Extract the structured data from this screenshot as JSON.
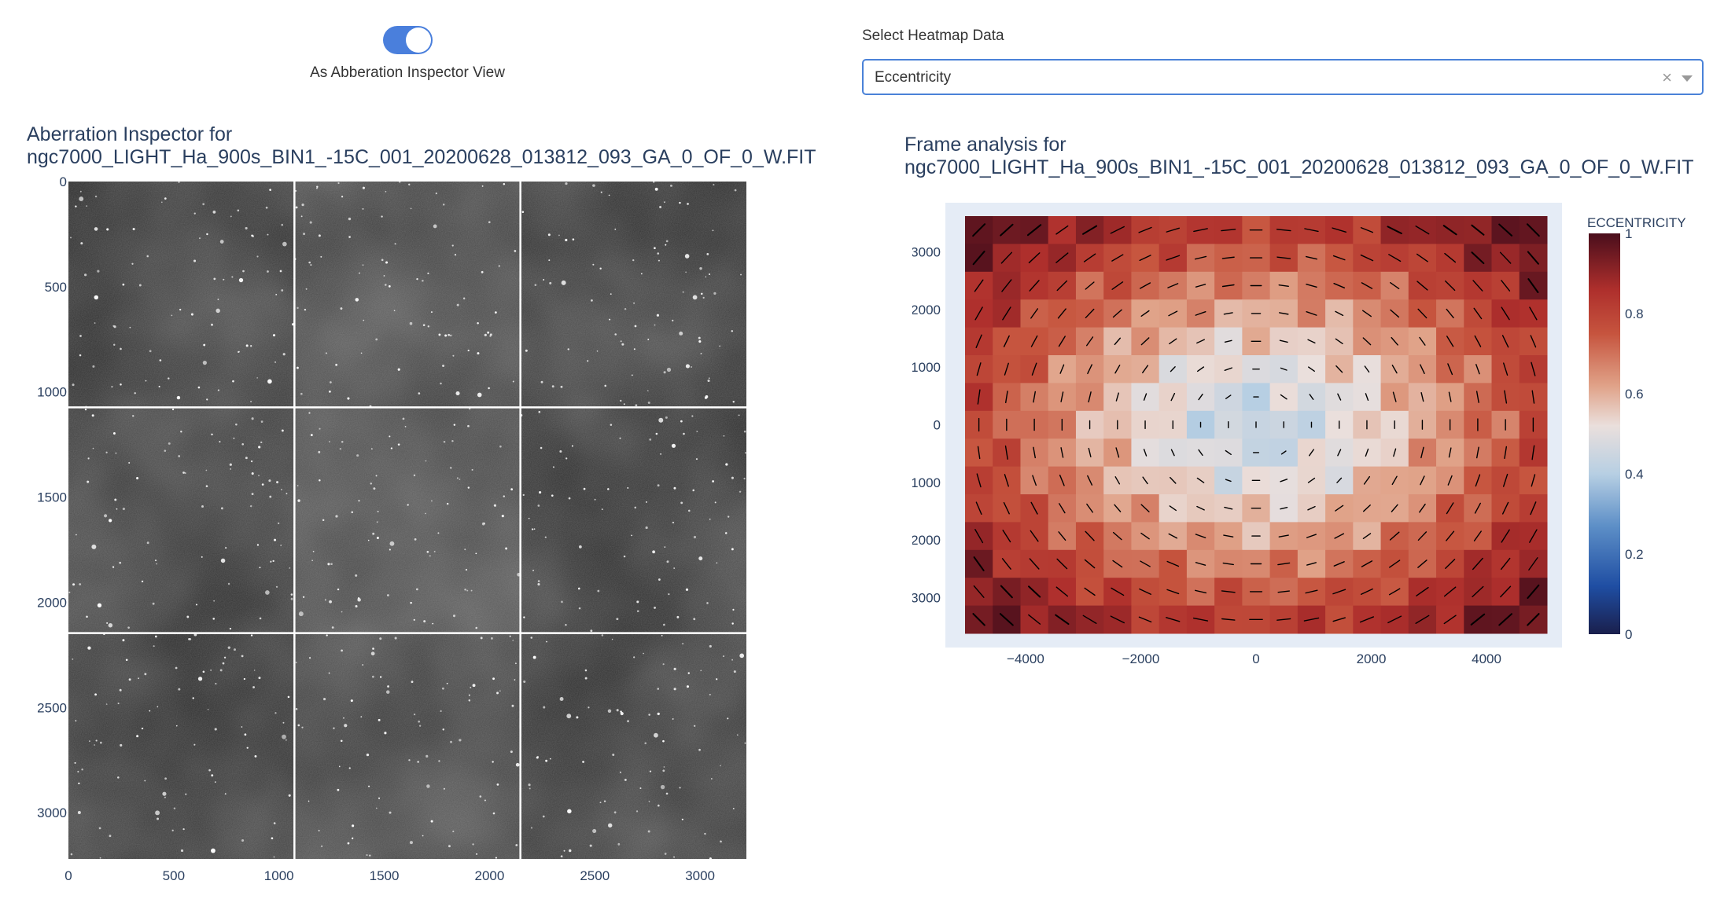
{
  "toggle": {
    "label": "As Abberation Inspector View",
    "checked": true
  },
  "dropdown": {
    "label": "Select Heatmap Data",
    "value": "Eccentricity"
  },
  "icons": {
    "clear": "close-icon",
    "caret": "chevron-down-icon"
  },
  "colors": {
    "toggle_on": "#4a7fdc",
    "dropdown_border": "#4a82d8",
    "plot_bg": "#e5ecf6",
    "title_text": "#2a3f5f"
  },
  "chart_data": [
    {
      "type": "image-grid",
      "title_line1": "Aberration Inspector for",
      "title_line2": "ngc7000_LIGHT_Ha_900s_BIN1_-15C_001_20200628_013812_093_GA_0_OF_0_W.FIT",
      "xlim": [
        0,
        3220
      ],
      "ylim": [
        3220,
        0
      ],
      "x_ticks": [
        0,
        500,
        1000,
        1500,
        2000,
        2500,
        3000
      ],
      "y_ticks": [
        0,
        500,
        1000,
        1500,
        2000,
        2500,
        3000
      ],
      "grid_rows": 3,
      "grid_cols": 3,
      "tile_brightness": [
        [
          0.32,
          0.45,
          0.3
        ],
        [
          0.36,
          0.52,
          0.31
        ],
        [
          0.31,
          0.42,
          0.34
        ]
      ]
    },
    {
      "type": "heatmap",
      "title_line1": "Frame analysis for",
      "title_line2": "ngc7000_LIGHT_Ha_900s_BIN1_-15C_001_20200628_013812_093_GA_0_OF_0_W.FIT",
      "xlim": [
        -5050,
        5050
      ],
      "ylim": [
        -3620,
        3620
      ],
      "x_ticks": [
        -4000,
        -2000,
        0,
        2000,
        4000
      ],
      "x_tick_labels": [
        "−4000",
        "−2000",
        "0",
        "2000",
        "4000"
      ],
      "y_ticks": [
        3000,
        2000,
        1000,
        0,
        -1000,
        -2000,
        -3000
      ],
      "y_tick_labels": [
        "3000",
        "2000",
        "1000",
        "0",
        "−1000",
        "−2000",
        "−3000"
      ],
      "grid_cols": 21,
      "grid_rows": 15,
      "colorscale_title": "ECCENTRICITY",
      "colorbar_ticks": [
        0,
        0.2,
        0.4,
        0.6,
        0.8,
        1
      ],
      "colorbar_tick_labels": [
        "0",
        "0.2",
        "0.4",
        "0.6",
        "0.8",
        "1"
      ],
      "zlim": [
        0,
        1
      ],
      "colorscale": [
        [
          0,
          "#1a1f4c"
        ],
        [
          0.12,
          "#1f4ea3"
        ],
        [
          0.27,
          "#5d8fc7"
        ],
        [
          0.4,
          "#b7cfe3"
        ],
        [
          0.52,
          "#eadfdc"
        ],
        [
          0.62,
          "#e0a288"
        ],
        [
          0.75,
          "#c6543e"
        ],
        [
          0.86,
          "#ae2f2c"
        ],
        [
          1,
          "#4a0e1c"
        ]
      ]
    }
  ]
}
